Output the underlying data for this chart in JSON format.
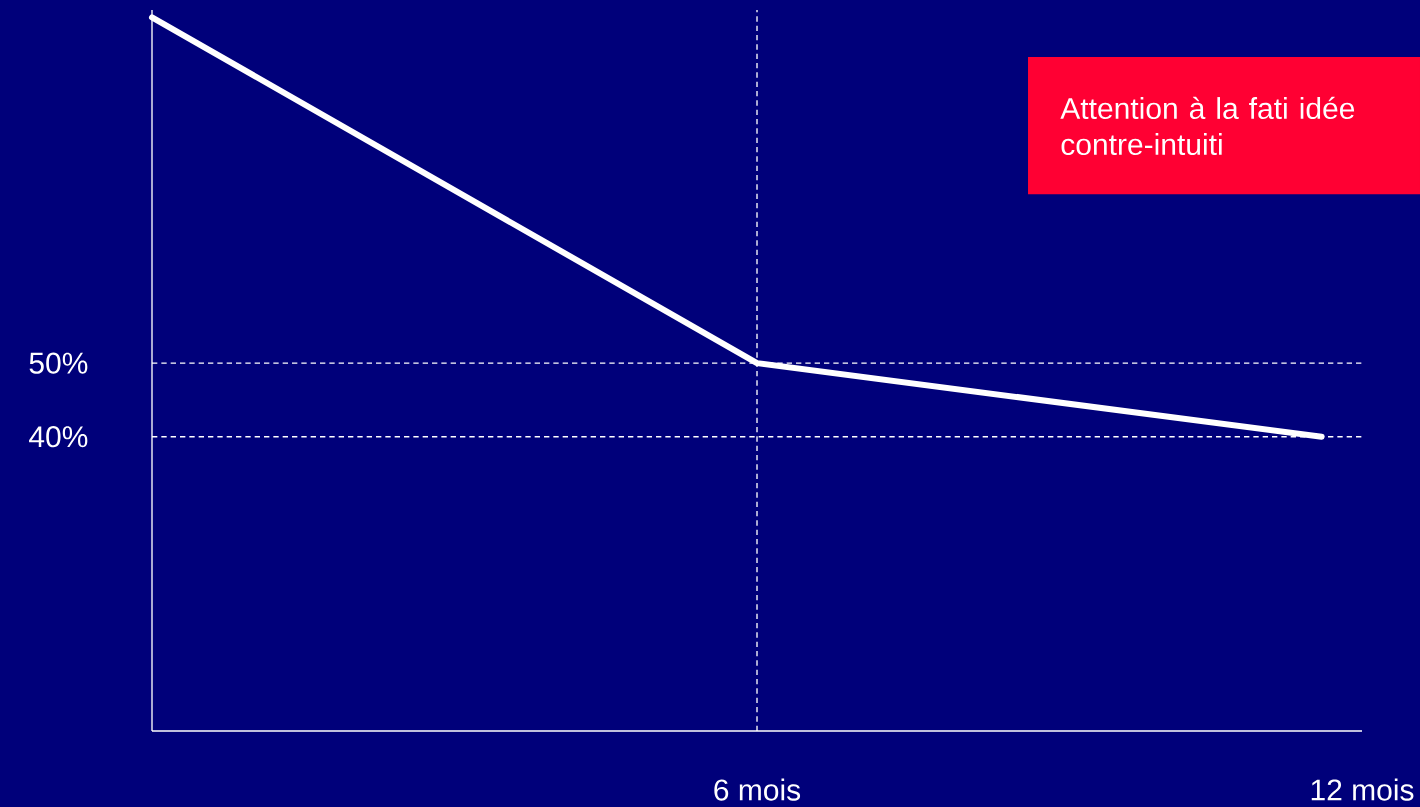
{
  "chart_data": {
    "type": "line",
    "x": [
      0,
      6,
      11.6
    ],
    "values": [
      97,
      50,
      40
    ],
    "color": "#ffffff",
    "marker": "none",
    "line_style": "solid",
    "xlim": [
      0,
      12
    ],
    "ylim": [
      0,
      98
    ],
    "xticks": [
      {
        "value": 6,
        "label": "6 mois"
      },
      {
        "value": 12,
        "label": "12 mois"
      }
    ],
    "yticks": [
      {
        "value": 50,
        "label": "50%"
      },
      {
        "value": 40,
        "label": "40%"
      }
    ],
    "ref_lines": [
      {
        "axis": "y",
        "value": 50,
        "line_style": "dashed",
        "color": "#ffffff"
      },
      {
        "axis": "y",
        "value": 40,
        "line_style": "dashed",
        "color": "#ffffff"
      },
      {
        "axis": "x",
        "value": 6,
        "line_style": "dashed",
        "color": "#ffffff"
      }
    ],
    "annotations": [
      "Attention à la fati idée contre-intuiti"
    ]
  }
}
